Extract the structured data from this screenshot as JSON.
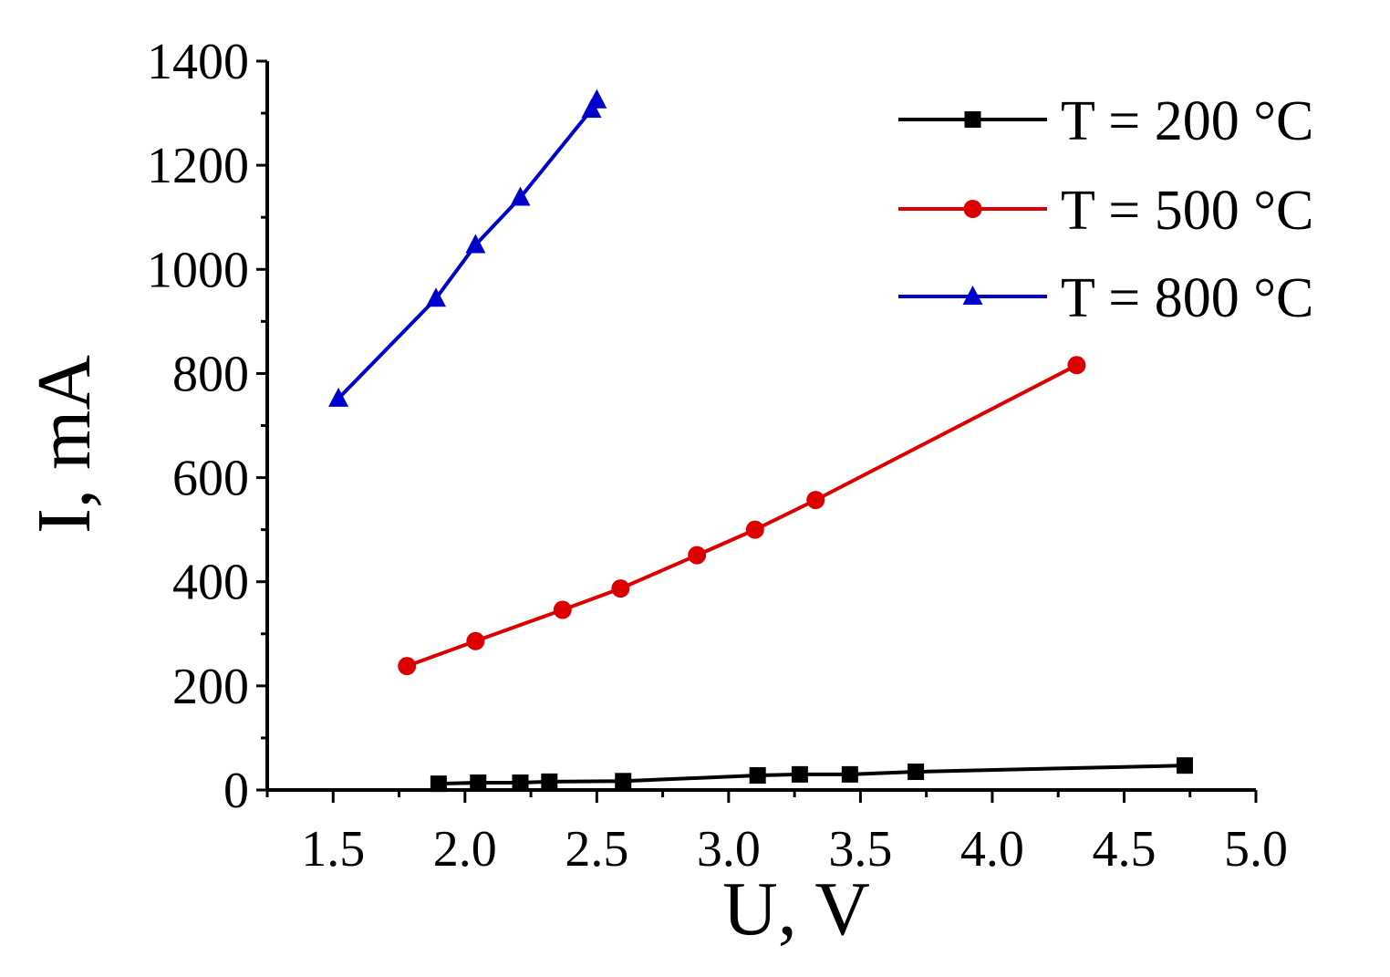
{
  "chart_data": {
    "type": "line",
    "xlabel": "U, V",
    "ylabel": "I, mA",
    "xlim": [
      1.25,
      5.0
    ],
    "ylim": [
      0,
      1400
    ],
    "xticks": [
      "1.5",
      "2.0",
      "2.5",
      "3.0",
      "3.5",
      "4.0",
      "4.5",
      "5.0"
    ],
    "yticks": [
      "0",
      "200",
      "400",
      "600",
      "800",
      "1000",
      "1200",
      "1400"
    ],
    "grid": false,
    "legend_position": "top-right",
    "series": [
      {
        "name": "T = 200 °C",
        "color": "#000000",
        "marker": "square",
        "x": [
          1.9,
          2.05,
          2.21,
          2.32,
          2.6,
          3.11,
          3.27,
          3.46,
          3.71,
          4.73
        ],
        "y": [
          12,
          14,
          14,
          16,
          17,
          28,
          30,
          30,
          35,
          47
        ]
      },
      {
        "name": "T = 500 °C",
        "color": "#dd0000",
        "marker": "circle",
        "x": [
          1.78,
          2.04,
          2.37,
          2.59,
          2.88,
          3.1,
          3.33,
          4.32
        ],
        "y": [
          238,
          286,
          346,
          387,
          451,
          500,
          557,
          816
        ]
      },
      {
        "name": "T = 800 °C",
        "color": "#0000cc",
        "marker": "triangle",
        "x": [
          1.52,
          1.89,
          2.04,
          2.21,
          2.48,
          2.5
        ],
        "y": [
          752,
          944,
          1047,
          1138,
          1307,
          1325
        ]
      }
    ]
  }
}
